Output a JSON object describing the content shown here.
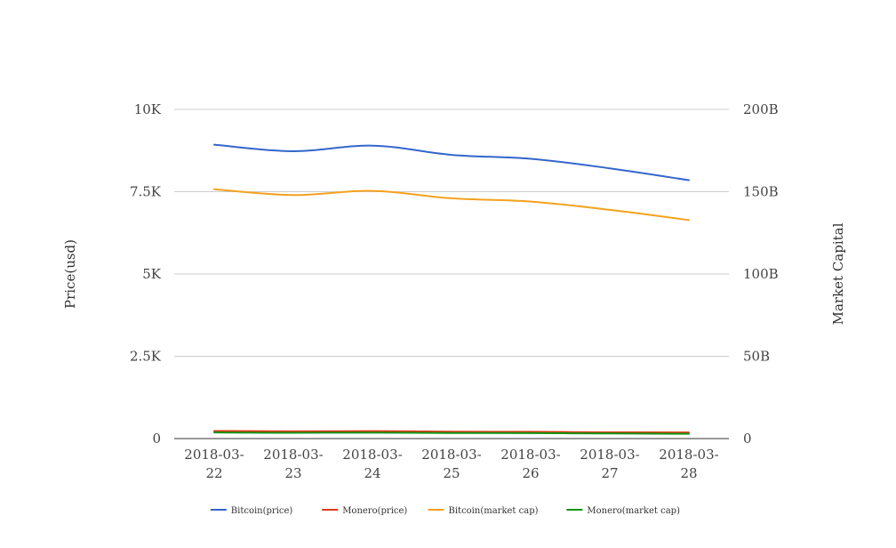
{
  "chart_data": {
    "type": "line",
    "categories": [
      [
        "2018-03-",
        "22"
      ],
      [
        "2018-03-",
        "23"
      ],
      [
        "2018-03-",
        "24"
      ],
      [
        "2018-03-",
        "25"
      ],
      [
        "2018-03-",
        "26"
      ],
      [
        "2018-03-",
        "27"
      ],
      [
        "2018-03-",
        "28"
      ]
    ],
    "left_axis": {
      "title": "Price(usd)",
      "range": [
        0,
        10000
      ],
      "ticks": [
        0,
        2500,
        5000,
        7500,
        10000
      ],
      "tick_labels": [
        "0",
        "2.5K",
        "5K",
        "7.5K",
        "10K"
      ]
    },
    "right_axis": {
      "title": "Market Capital",
      "range": [
        0,
        200000000000
      ],
      "ticks": [
        0,
        50000000000,
        100000000000,
        150000000000,
        200000000000
      ],
      "tick_labels": [
        "0",
        "50B",
        "100B",
        "150B",
        "200B"
      ]
    },
    "grid": true,
    "legend_position": "bottom",
    "series": [
      {
        "name": "Bitcoin(price)",
        "axis": "left",
        "color": "#3366cc",
        "values": [
          8930,
          8730,
          8900,
          8620,
          8500,
          8210,
          7850
        ]
      },
      {
        "name": "Monero(price)",
        "axis": "left",
        "color": "#dc3912",
        "values": [
          230,
          220,
          225,
          210,
          205,
          190,
          185
        ]
      },
      {
        "name": "Bitcoin(market cap)",
        "axis": "right",
        "color": "#f4a21e",
        "values": [
          151500000000,
          148000000000,
          150500000000,
          146000000000,
          144000000000,
          139000000000,
          132800000000
        ]
      },
      {
        "name": "Monero(market cap)",
        "axis": "right",
        "color": "#109618",
        "values": [
          3700000000,
          3500000000,
          3600000000,
          3400000000,
          3300000000,
          3100000000,
          2900000000
        ]
      }
    ]
  }
}
